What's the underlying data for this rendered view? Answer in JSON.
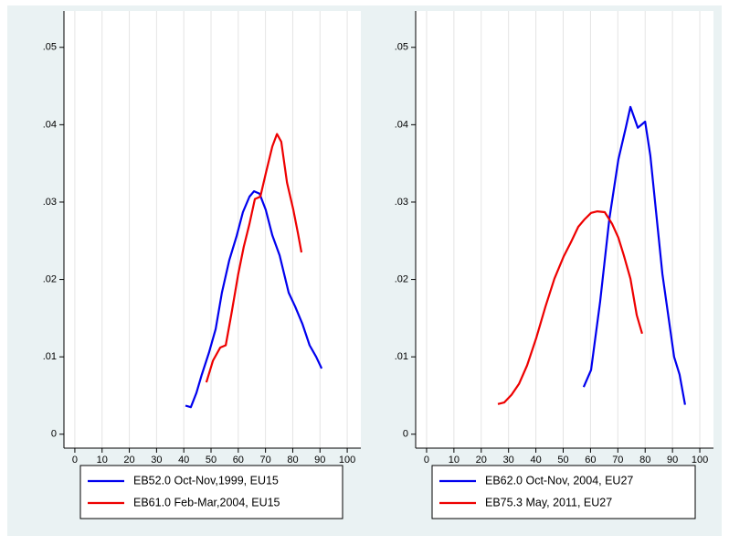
{
  "chart_data": [
    {
      "type": "line",
      "grid": "x",
      "legend": "bottom",
      "xlim": [
        -4,
        105
      ],
      "ylim": [
        -0.0018,
        0.0547
      ],
      "xticks": [
        0,
        10,
        20,
        30,
        40,
        50,
        60,
        70,
        80,
        90,
        100
      ],
      "yticks": [
        0,
        {
          "value": 0.01,
          "label": ".01"
        },
        {
          "value": 0.02,
          "label": ".02"
        },
        {
          "value": 0.03,
          "label": ".03"
        },
        {
          "value": 0.04,
          "label": ".04"
        },
        {
          "value": 0.05,
          "label": ".05"
        }
      ],
      "series": [
        {
          "name": "EB52.0 Oct-Nov,1999, EU15",
          "color": "#0000ee",
          "x": [
            40.6,
            42.6,
            44.6,
            46.6,
            49.3,
            51.7,
            54,
            56.7,
            59.4,
            61.7,
            64.1,
            65.8,
            67.8,
            70.1,
            72.5,
            75.2,
            78.5,
            80.9,
            83.6,
            86.2,
            88.6,
            90.6
          ],
          "values": [
            0.0037,
            0.0035,
            0.0053,
            0.0077,
            0.0106,
            0.0136,
            0.0183,
            0.0225,
            0.0256,
            0.0287,
            0.0307,
            0.0314,
            0.0311,
            0.029,
            0.0257,
            0.0231,
            0.0183,
            0.0165,
            0.0142,
            0.0115,
            0.01,
            0.0085
          ]
        },
        {
          "name": "EB61.0 Feb-Mar,2004, EU15",
          "color": "#ee0000",
          "x": [
            48.3,
            50.7,
            53.4,
            55.4,
            57.4,
            60,
            62,
            64.1,
            66.1,
            68.1,
            70.1,
            72.5,
            74.2,
            75.8,
            77.9,
            80.2,
            81.9,
            83.2
          ],
          "values": [
            0.0067,
            0.0095,
            0.0112,
            0.0115,
            0.0154,
            0.0207,
            0.0242,
            0.0272,
            0.0304,
            0.0307,
            0.0337,
            0.0372,
            0.0388,
            0.0378,
            0.0325,
            0.029,
            0.026,
            0.0235
          ]
        }
      ]
    },
    {
      "type": "line",
      "grid": "x",
      "legend": "bottom",
      "xlim": [
        -4,
        105
      ],
      "ylim": [
        -0.0018,
        0.0547
      ],
      "xticks": [
        0,
        10,
        20,
        30,
        40,
        50,
        60,
        70,
        80,
        90,
        100
      ],
      "yticks": [
        0,
        {
          "value": 0.01,
          "label": ".01"
        },
        {
          "value": 0.02,
          "label": ".02"
        },
        {
          "value": 0.03,
          "label": ".03"
        },
        {
          "value": 0.04,
          "label": ".04"
        },
        {
          "value": 0.05,
          "label": ".05"
        }
      ],
      "series": [
        {
          "name": "EB62.0 Oct-Nov, 2004, EU27",
          "color": "#0000ee",
          "x": [
            57.5,
            60.2,
            63.5,
            66.9,
            70.2,
            72.9,
            74.6,
            77.3,
            80,
            81.9,
            86.3,
            90.6,
            92.6,
            94.6
          ],
          "values": [
            0.0061,
            0.0083,
            0.0171,
            0.0278,
            0.0355,
            0.0396,
            0.0423,
            0.0396,
            0.0404,
            0.036,
            0.0207,
            0.01,
            0.0077,
            0.0038
          ]
        },
        {
          "name": "EB75.3 May, 2011, EU27",
          "color": "#ee0000",
          "x": [
            26.1,
            28.4,
            31.1,
            33.8,
            36.8,
            40.1,
            43.5,
            46.8,
            50.2,
            52.8,
            55.5,
            57.9,
            60.2,
            62.5,
            65.2,
            67.9,
            70.2,
            72.2,
            74.6,
            76.9,
            78.9
          ],
          "values": [
            0.0039,
            0.0041,
            0.0051,
            0.0065,
            0.0089,
            0.0124,
            0.0165,
            0.0201,
            0.023,
            0.0248,
            0.0268,
            0.0278,
            0.0286,
            0.0288,
            0.0287,
            0.0272,
            0.0254,
            0.0231,
            0.0201,
            0.0154,
            0.013
          ]
        }
      ]
    }
  ]
}
